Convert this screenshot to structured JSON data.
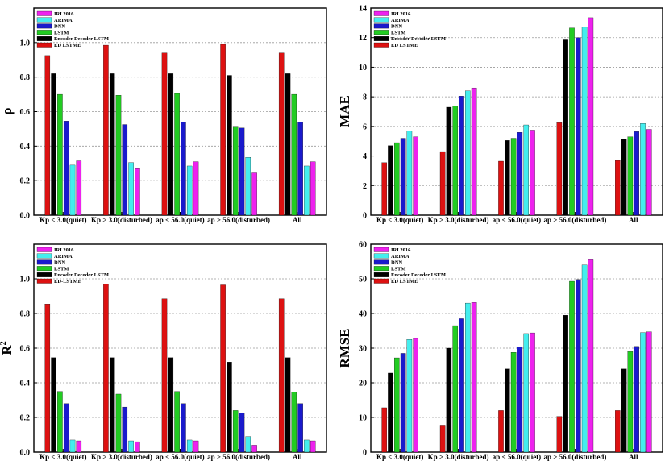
{
  "series_colors": {
    "IRI 2016": "#ee22ee",
    "ARIMA": "#44eeee",
    "DNN": "#1a1acc",
    "LSTM": "#22cc22",
    "Encoder Decoder LSTM": "#000000",
    "ED LSTME": "#dd1111"
  },
  "chart_data": [
    {
      "type": "bar",
      "title": "",
      "xlabel": "",
      "ylabel": "ρ",
      "ylabel_sup": "",
      "ylim": [
        0,
        1.2
      ],
      "yticks": [
        0.0,
        0.2,
        0.4,
        0.6,
        0.8,
        1.0
      ],
      "ytick_labels": [
        "0.0",
        "0.2",
        "0.4",
        "0.6",
        "0.8",
        "1.0"
      ],
      "grid": "dotted horizontal",
      "legend_position": "top-left",
      "categories": [
        "Kp < 3.0(quiet)",
        "Kp > 3.0(disturbed)",
        "ap < 56.0(quiet)",
        "ap > 56.0(disturbed)",
        "All"
      ],
      "legend": [
        "IRI 2016",
        "ARIMA",
        "DNN",
        "LSTM",
        "Encoder Decoder LSTM",
        "ED LSTME"
      ],
      "series": [
        {
          "name": "ED LSTME",
          "values": [
            0.925,
            0.985,
            0.94,
            0.99,
            0.94
          ]
        },
        {
          "name": "Encoder Decoder LSTM",
          "values": [
            0.82,
            0.82,
            0.82,
            0.81,
            0.82
          ]
        },
        {
          "name": "LSTM",
          "values": [
            0.7,
            0.695,
            0.705,
            0.515,
            0.7
          ]
        },
        {
          "name": "DNN",
          "values": [
            0.545,
            0.525,
            0.54,
            0.505,
            0.54
          ]
        },
        {
          "name": "ARIMA",
          "values": [
            0.29,
            0.305,
            0.285,
            0.335,
            0.285
          ]
        },
        {
          "name": "IRI 2016",
          "values": [
            0.315,
            0.27,
            0.31,
            0.245,
            0.31
          ]
        }
      ]
    },
    {
      "type": "bar",
      "title": "",
      "xlabel": "",
      "ylabel": "MAE",
      "ylabel_sup": "",
      "ylim": [
        0,
        14
      ],
      "yticks": [
        0,
        2,
        4,
        6,
        8,
        10,
        12,
        14
      ],
      "ytick_labels": [
        "0",
        "2",
        "4",
        "6",
        "8",
        "10",
        "12",
        "14"
      ],
      "grid": "dotted horizontal",
      "legend_position": "top-left",
      "categories": [
        "Kp < 3.0(quiet)",
        "Kp > 3.0(disturbed)",
        "ap < 56.0(quiet)",
        "ap > 56.0(disturbed)",
        "All"
      ],
      "legend": [
        "IRI 2016",
        "ARIMA",
        "DNN",
        "LSTM",
        "Encoder Decoder LSTM",
        "ED LSTME"
      ],
      "series": [
        {
          "name": "ED LSTME",
          "values": [
            3.55,
            4.3,
            3.65,
            6.25,
            3.7
          ]
        },
        {
          "name": "Encoder Decoder LSTM",
          "values": [
            4.7,
            7.3,
            5.05,
            11.85,
            5.15
          ]
        },
        {
          "name": "LSTM",
          "values": [
            4.9,
            7.4,
            5.2,
            12.65,
            5.3
          ]
        },
        {
          "name": "DNN",
          "values": [
            5.2,
            8.05,
            5.6,
            12.0,
            5.65
          ]
        },
        {
          "name": "ARIMA",
          "values": [
            5.7,
            8.4,
            6.1,
            12.7,
            6.2
          ]
        },
        {
          "name": "IRI 2016",
          "values": [
            5.3,
            8.6,
            5.75,
            13.35,
            5.8
          ]
        }
      ]
    },
    {
      "type": "bar",
      "title": "",
      "xlabel": "",
      "ylabel": "R",
      "ylabel_sup": "2",
      "ylim": [
        0,
        1.2
      ],
      "yticks": [
        0.0,
        0.2,
        0.4,
        0.6,
        0.8,
        1.0
      ],
      "ytick_labels": [
        "0.0",
        "0.2",
        "0.4",
        "0.6",
        "0.8",
        "1.0"
      ],
      "grid": "dotted horizontal",
      "legend_position": "top-left",
      "categories": [
        "Kp < 3.0(quiet)",
        "Kp > 3.0(disturbed)",
        "ap < 56.0(quiet)",
        "ap > 56.0(disturbed)",
        "All"
      ],
      "legend": [
        "IRI 2016",
        "ARIMA",
        "DNN",
        "LSTM",
        "Encoder Decoder LSTM",
        "ED-LSTME"
      ],
      "series": [
        {
          "name": "ED-LSTME",
          "values": [
            0.855,
            0.97,
            0.885,
            0.965,
            0.885
          ]
        },
        {
          "name": "Encoder Decoder LSTM",
          "values": [
            0.545,
            0.545,
            0.545,
            0.52,
            0.545
          ]
        },
        {
          "name": "LSTM",
          "values": [
            0.35,
            0.335,
            0.35,
            0.24,
            0.345
          ]
        },
        {
          "name": "DNN",
          "values": [
            0.28,
            0.26,
            0.28,
            0.225,
            0.28
          ]
        },
        {
          "name": "ARIMA",
          "values": [
            0.07,
            0.065,
            0.07,
            0.09,
            0.07
          ]
        },
        {
          "name": "IRI 2016",
          "values": [
            0.065,
            0.06,
            0.065,
            0.04,
            0.065
          ]
        }
      ]
    },
    {
      "type": "bar",
      "title": "",
      "xlabel": "",
      "ylabel": "RMSE",
      "ylabel_sup": "",
      "ylim": [
        0,
        60
      ],
      "yticks": [
        0,
        10,
        20,
        30,
        40,
        50,
        60
      ],
      "ytick_labels": [
        "0",
        "10",
        "20",
        "30",
        "40",
        "50",
        "60"
      ],
      "grid": "dotted horizontal",
      "legend_position": "top-left",
      "categories": [
        "Kp < 3.0(quiet)",
        "Kp > 3.0(disturbed)",
        "ap < 56.0(quiet)",
        "ap > 56.0(disturbed)",
        "All"
      ],
      "legend": [
        "IRI 2016",
        "ARIMA",
        "DNN",
        "LSTM",
        "Encoder Decoder LSTM",
        "ED LSTME"
      ],
      "series": [
        {
          "name": "ED LSTME",
          "values": [
            12.8,
            7.8,
            12.0,
            10.3,
            12.0
          ]
        },
        {
          "name": "Encoder Decoder LSTM",
          "values": [
            22.8,
            30.0,
            24.0,
            39.5,
            24.0
          ]
        },
        {
          "name": "LSTM",
          "values": [
            27.2,
            36.5,
            28.8,
            49.3,
            29.0
          ]
        },
        {
          "name": "DNN",
          "values": [
            28.5,
            38.5,
            30.3,
            49.8,
            30.5
          ]
        },
        {
          "name": "ARIMA",
          "values": [
            32.5,
            43.0,
            34.2,
            54.0,
            34.5
          ]
        },
        {
          "name": "IRI 2016",
          "values": [
            32.8,
            43.2,
            34.4,
            55.5,
            34.7
          ]
        }
      ]
    }
  ]
}
